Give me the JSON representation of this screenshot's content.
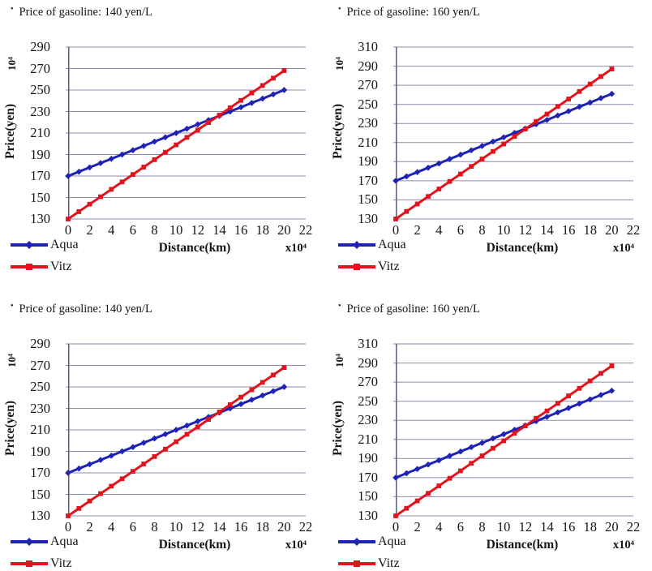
{
  "style": {
    "bullet": "•",
    "background": "#ffffff",
    "text_color": "#151515",
    "grid_color": "#8e8aab",
    "axis_color": "#5e5a78",
    "aqua_color": "#1e23b4",
    "vitz_color": "#e1141e"
  },
  "chart_data": [
    {
      "type": "line",
      "title": "Price of gasoline: 140 yen/L",
      "ylabel": "Price(yen)",
      "y_unit": "10⁴",
      "xlabel": "Distance(km)",
      "x_unit": "x10⁴",
      "xlim": [
        0,
        22
      ],
      "xticks": [
        0,
        2,
        4,
        6,
        8,
        10,
        12,
        14,
        16,
        18,
        20,
        22
      ],
      "ylim": [
        130,
        290
      ],
      "yticks": [
        130,
        150,
        170,
        190,
        210,
        230,
        250,
        270,
        290
      ],
      "grid": "horizontal",
      "legend_position": "bottom-left",
      "x": [
        0,
        1,
        2,
        3,
        4,
        5,
        6,
        7,
        8,
        9,
        10,
        11,
        12,
        13,
        14,
        15,
        16,
        17,
        18,
        19,
        20
      ],
      "series": [
        {
          "name": "Aqua",
          "color": "#1e23b4",
          "marker": "diamond",
          "values": [
            170,
            174,
            178,
            182,
            186,
            190,
            194,
            198,
            202,
            206,
            210,
            214,
            218,
            222,
            226,
            230,
            234,
            238,
            242,
            246,
            250
          ]
        },
        {
          "name": "Vitz",
          "color": "#e1141e",
          "marker": "square",
          "values": [
            130,
            136.9,
            143.8,
            150.7,
            157.6,
            164.5,
            171.4,
            178.3,
            185.2,
            192.1,
            199,
            205.9,
            212.8,
            219.7,
            226.6,
            233.5,
            240.4,
            247.3,
            254.2,
            261.1,
            268
          ]
        }
      ]
    },
    {
      "type": "line",
      "title": "Price of gasoline: 160 yen/L",
      "ylabel": "Price(yen)",
      "y_unit": "10⁴",
      "xlabel": "Distance(km)",
      "x_unit": "x10⁴",
      "xlim": [
        0,
        22
      ],
      "xticks": [
        0,
        2,
        4,
        6,
        8,
        10,
        12,
        14,
        16,
        18,
        20,
        22
      ],
      "ylim": [
        130,
        310
      ],
      "yticks": [
        130,
        150,
        170,
        190,
        210,
        230,
        250,
        270,
        290,
        310
      ],
      "grid": "horizontal",
      "legend_position": "bottom-left",
      "x": [
        0,
        1,
        2,
        3,
        4,
        5,
        6,
        7,
        8,
        9,
        10,
        11,
        12,
        13,
        14,
        15,
        16,
        17,
        18,
        19,
        20
      ],
      "series": [
        {
          "name": "Aqua",
          "color": "#1e23b4",
          "marker": "diamond",
          "values": [
            170,
            174.6,
            179.1,
            183.7,
            188.2,
            192.8,
            197.3,
            201.9,
            206.4,
            211,
            215.5,
            220.1,
            224.6,
            229.2,
            233.7,
            238.3,
            242.8,
            247.4,
            251.9,
            256.5,
            261
          ]
        },
        {
          "name": "Vitz",
          "color": "#e1141e",
          "marker": "square",
          "values": [
            130,
            137.9,
            145.7,
            153.6,
            161.4,
            169.3,
            177.1,
            185,
            192.8,
            200.7,
            208.5,
            216.4,
            224.2,
            232.1,
            239.9,
            247.8,
            255.6,
            263.5,
            271.3,
            279.2,
            287
          ]
        }
      ]
    },
    {
      "type": "line",
      "title": "Price of gasoline: 140 yen/L",
      "ylabel": "Price(yen)",
      "y_unit": "10⁴",
      "xlabel": "Distance(km)",
      "x_unit": "x10⁴",
      "xlim": [
        0,
        22
      ],
      "xticks": [
        0,
        2,
        4,
        6,
        8,
        10,
        12,
        14,
        16,
        18,
        20,
        22
      ],
      "ylim": [
        130,
        290
      ],
      "yticks": [
        130,
        150,
        170,
        190,
        210,
        230,
        250,
        270,
        290
      ],
      "grid": "horizontal",
      "legend_position": "bottom-left",
      "x": [
        0,
        1,
        2,
        3,
        4,
        5,
        6,
        7,
        8,
        9,
        10,
        11,
        12,
        13,
        14,
        15,
        16,
        17,
        18,
        19,
        20
      ],
      "series": [
        {
          "name": "Aqua",
          "color": "#1e23b4",
          "marker": "diamond",
          "values": [
            170,
            174,
            178,
            182,
            186,
            190,
            194,
            198,
            202,
            206,
            210,
            214,
            218,
            222,
            226,
            230,
            234,
            238,
            242,
            246,
            250
          ]
        },
        {
          "name": "Vitz",
          "color": "#e1141e",
          "marker": "square",
          "values": [
            130,
            136.9,
            143.8,
            150.7,
            157.6,
            164.5,
            171.4,
            178.3,
            185.2,
            192.1,
            199,
            205.9,
            212.8,
            219.7,
            226.6,
            233.5,
            240.4,
            247.3,
            254.2,
            261.1,
            268
          ]
        }
      ]
    },
    {
      "type": "line",
      "title": "Price of gasoline: 160 yen/L",
      "ylabel": "Price(yen)",
      "y_unit": "10⁴",
      "xlabel": "Distance(km)",
      "x_unit": "x10⁴",
      "xlim": [
        0,
        22
      ],
      "xticks": [
        0,
        2,
        4,
        6,
        8,
        10,
        12,
        14,
        16,
        18,
        20,
        22
      ],
      "ylim": [
        130,
        310
      ],
      "yticks": [
        130,
        150,
        170,
        190,
        210,
        230,
        250,
        270,
        290,
        310
      ],
      "grid": "horizontal",
      "legend_position": "bottom-left",
      "x": [
        0,
        1,
        2,
        3,
        4,
        5,
        6,
        7,
        8,
        9,
        10,
        11,
        12,
        13,
        14,
        15,
        16,
        17,
        18,
        19,
        20
      ],
      "series": [
        {
          "name": "Aqua",
          "color": "#1e23b4",
          "marker": "diamond",
          "values": [
            170,
            174.6,
            179.1,
            183.7,
            188.2,
            192.8,
            197.3,
            201.9,
            206.4,
            211,
            215.5,
            220.1,
            224.6,
            229.2,
            233.7,
            238.3,
            242.8,
            247.4,
            251.9,
            256.5,
            261
          ]
        },
        {
          "name": "Vitz",
          "color": "#e1141e",
          "marker": "square",
          "values": [
            130,
            137.9,
            145.7,
            153.6,
            161.4,
            169.3,
            177.1,
            185,
            192.8,
            200.7,
            208.5,
            216.4,
            224.2,
            232.1,
            239.9,
            247.8,
            255.6,
            263.5,
            271.3,
            279.2,
            287
          ]
        }
      ]
    }
  ]
}
